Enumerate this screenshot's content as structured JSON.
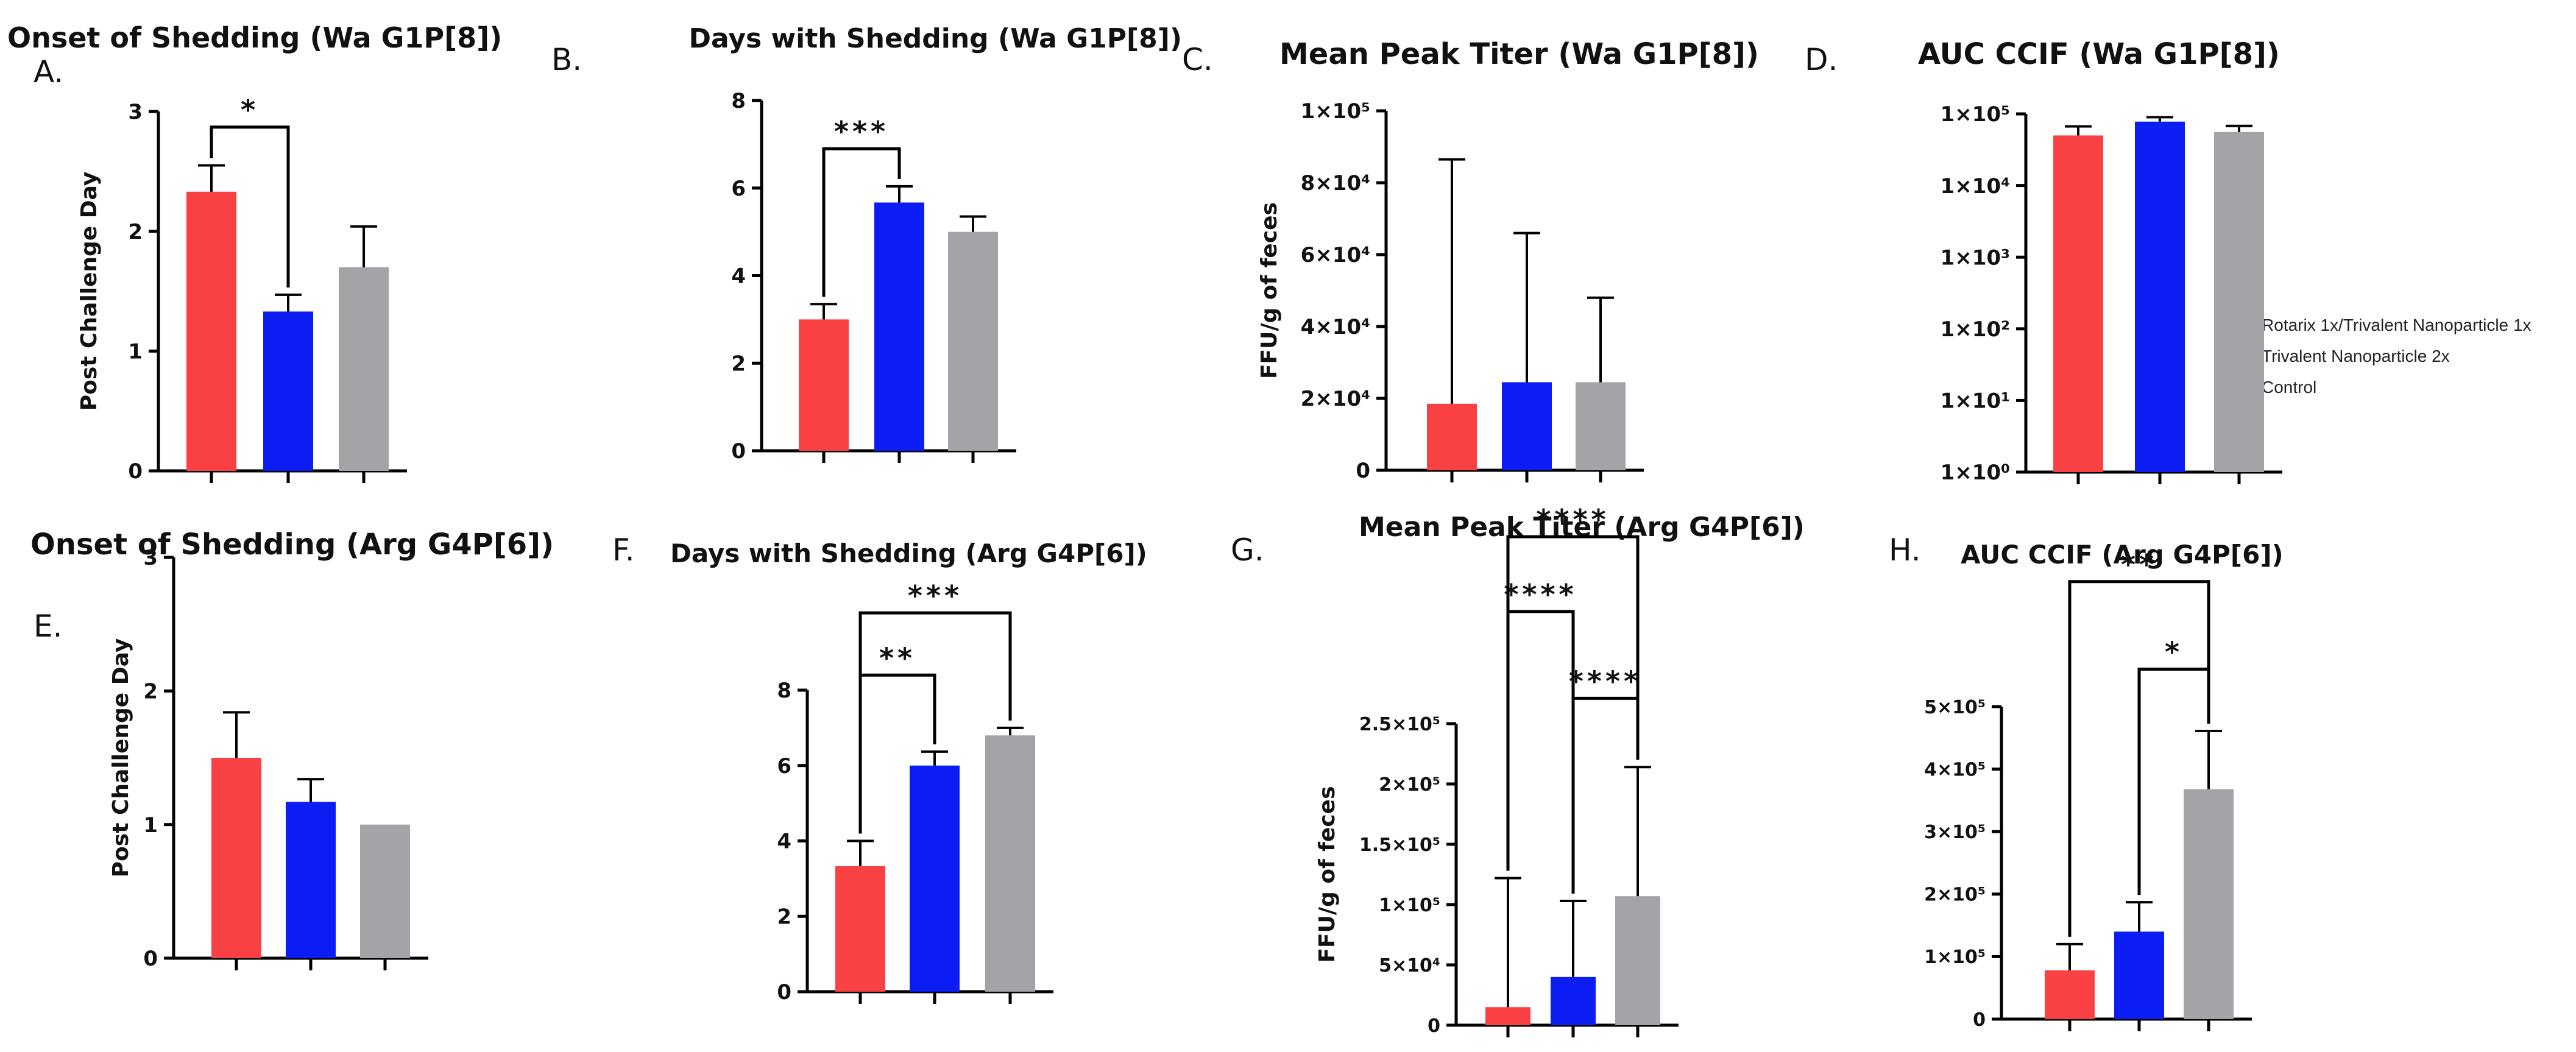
{
  "colors": {
    "red": "#f94144",
    "blue": "#0b1df2",
    "gray": "#a3a3a8"
  },
  "legend": [
    {
      "label": "Rotarix 1x/Trivalent Nanoparticle 1x",
      "color": "#f94144"
    },
    {
      "label": "Trivalent Nanoparticle 2x",
      "color": "#0b1df2"
    },
    {
      "label": "Control",
      "color": "#a3a3a8"
    }
  ],
  "chart_data": [
    {
      "panel": "A.",
      "type": "bar",
      "scale": "linear",
      "title": "Onset of Shedding (Wa G1P[8])",
      "ylabel": "Post Challenge Day",
      "ylim": [
        0,
        3
      ],
      "ticks": [
        0,
        1,
        2,
        3
      ],
      "tick_labels": [
        "0",
        "1",
        "2",
        "3"
      ],
      "values": [
        2.33,
        1.33,
        1.7
      ],
      "errors": [
        0.22,
        0.14,
        0.34
      ],
      "significance": [
        {
          "from": 0,
          "to": 1,
          "level": 2.87,
          "text": "*"
        }
      ]
    },
    {
      "panel": "B.",
      "type": "bar",
      "scale": "linear",
      "title": "Days with Shedding (Wa G1P[8])",
      "ylabel": "",
      "ylim": [
        0,
        8
      ],
      "ticks": [
        0,
        2,
        4,
        6,
        8
      ],
      "tick_labels": [
        "0",
        "2",
        "4",
        "6",
        "8"
      ],
      "values": [
        3.0,
        5.67,
        5.0
      ],
      "errors": [
        0.35,
        0.37,
        0.35
      ],
      "significance": [
        {
          "from": 0,
          "to": 1,
          "level": 6.9,
          "text": "***"
        }
      ]
    },
    {
      "panel": "C.",
      "type": "bar",
      "scale": "linear",
      "title": "Mean Peak Titer (Wa G1P[8])",
      "ylabel": "FFU/g of feces",
      "ylim": [
        0,
        100000
      ],
      "ticks": [
        0,
        20000,
        40000,
        60000,
        80000,
        100000
      ],
      "tick_labels": [
        "0",
        "2×10⁴",
        "4×10⁴",
        "6×10⁴",
        "8×10⁴",
        "1×10⁵"
      ],
      "values": [
        18500,
        24500,
        24500
      ],
      "errors": [
        68000,
        41500,
        23500
      ],
      "significance": []
    },
    {
      "panel": "D.",
      "type": "bar",
      "scale": "log",
      "title": "AUC CCIF (Wa G1P[8])",
      "ylabel": "",
      "ylim": [
        1,
        100000
      ],
      "ticks": [
        1,
        10,
        100,
        1000,
        10000,
        100000
      ],
      "tick_labels": [
        "1×10⁰",
        "1×10¹",
        "1×10²",
        "1×10³",
        "1×10⁴",
        "1×10⁵"
      ],
      "values": [
        50000,
        78000,
        56000
      ],
      "errors": [
        17000,
        12000,
        12000
      ],
      "significance": []
    },
    {
      "panel": "E.",
      "type": "bar",
      "scale": "linear",
      "title": "Onset of Shedding (Arg G4P[6])",
      "ylabel": "Post Challenge Day",
      "ylim": [
        0,
        3
      ],
      "ticks": [
        0,
        1,
        2,
        3
      ],
      "tick_labels": [
        "0",
        "1",
        "2",
        "3"
      ],
      "values": [
        1.5,
        1.17,
        1.0
      ],
      "errors": [
        0.34,
        0.17,
        0.0
      ],
      "significance": []
    },
    {
      "panel": "F.",
      "type": "bar",
      "scale": "linear",
      "title": "Days with Shedding (Arg G4P[6])",
      "ylabel": "",
      "ylim": [
        0,
        8
      ],
      "ticks": [
        0,
        2,
        4,
        6,
        8
      ],
      "tick_labels": [
        "0",
        "2",
        "4",
        "6",
        "8"
      ],
      "values": [
        3.33,
        6.0,
        6.8
      ],
      "errors": [
        0.67,
        0.37,
        0.2
      ],
      "significance": [
        {
          "from": 0,
          "to": 1,
          "level": 8.4,
          "text": "**"
        },
        {
          "from": 0,
          "to": 2,
          "level": 10.05,
          "text": "***"
        }
      ]
    },
    {
      "panel": "G.",
      "type": "bar",
      "scale": "linear",
      "title": "Mean Peak Titer (Arg G4P[6])",
      "ylabel": "FFU/g of feces",
      "ylim": [
        0,
        250000
      ],
      "ticks": [
        0,
        50000,
        100000,
        150000,
        200000,
        250000
      ],
      "tick_labels": [
        "0",
        "5×10⁴",
        "1×10⁵",
        "1.5×10⁵",
        "2×10⁵",
        "2.5×10⁵"
      ],
      "values": [
        15000,
        40000,
        107000
      ],
      "errors": [
        107000,
        63000,
        107000
      ],
      "significance": [
        {
          "from": 0,
          "to": 1,
          "level": 343000,
          "text": "****"
        },
        {
          "from": 0,
          "to": 2,
          "level": 405000,
          "text": "****"
        },
        {
          "from": 1,
          "to": 2,
          "level": 271000,
          "text": "****"
        }
      ]
    },
    {
      "panel": "H.",
      "type": "bar",
      "scale": "linear",
      "title": "AUC CCIF (Arg G4P[6])",
      "ylabel": "",
      "ylim": [
        0,
        500000
      ],
      "ticks": [
        0,
        100000,
        200000,
        300000,
        400000,
        500000
      ],
      "tick_labels": [
        "0",
        "1×10⁵",
        "2×10⁵",
        "3×10⁵",
        "4×10⁵",
        "5×10⁵"
      ],
      "values": [
        78000,
        140000,
        368000
      ],
      "errors": [
        42000,
        47000,
        93000
      ],
      "significance": [
        {
          "from": 0,
          "to": 2,
          "level": 700000,
          "text": "**"
        },
        {
          "from": 1,
          "to": 2,
          "level": 560000,
          "text": "*"
        }
      ]
    }
  ]
}
